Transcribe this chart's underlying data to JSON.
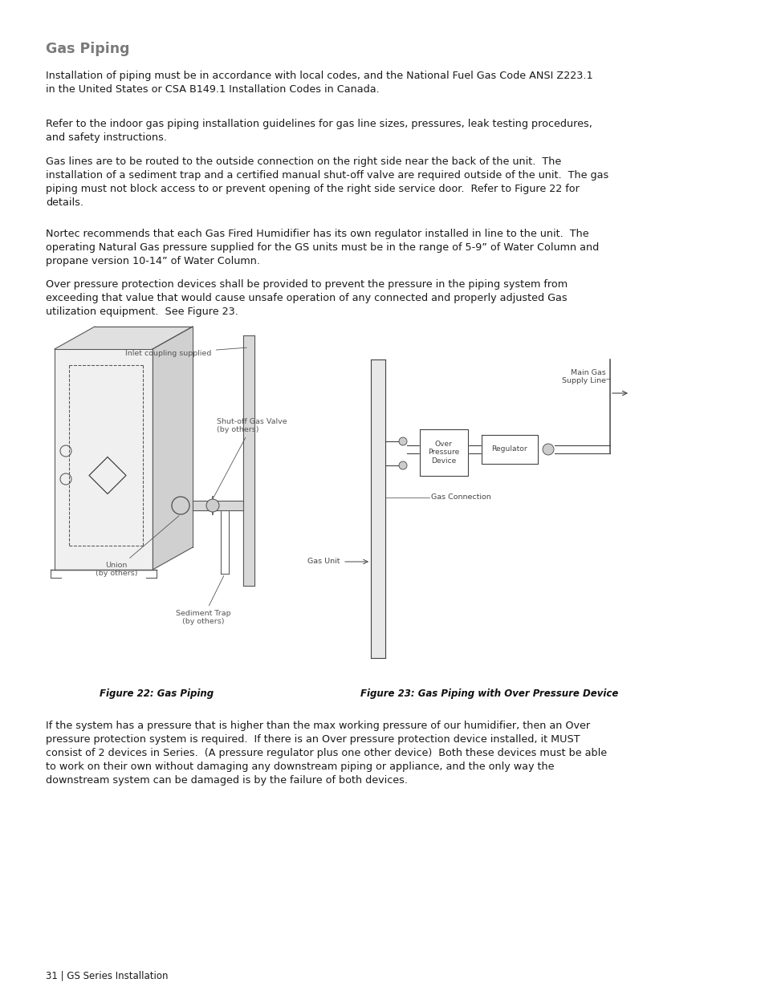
{
  "title": "Gas Piping",
  "title_color": "#7a7a7a",
  "body_color": "#1a1a1a",
  "bg_color": "#ffffff",
  "para1": "Installation of piping must be in accordance with local codes, and the National Fuel Gas Code ANSI Z223.1\nin the United States or CSA B149.1 Installation Codes in Canada.",
  "para2": "Refer to the indoor gas piping installation guidelines for gas line sizes, pressures, leak testing procedures,\nand safety instructions.",
  "para3": "Gas lines are to be routed to the outside connection on the right side near the back of the unit.  The\ninstallation of a sediment trap and a certified manual shut-off valve are required outside of the unit.  The gas\npiping must not block access to or prevent opening of the right side service door.  Refer to Figure 22 for\ndetails.",
  "para4": "Nortec recommends that each Gas Fired Humidifier has its own regulator installed in line to the unit.  The\noperating Natural Gas pressure supplied for the GS units must be in the range of 5-9” of Water Column and\npropane version 10-14” of Water Column.",
  "para5": "Over pressure protection devices shall be provided to prevent the pressure in the piping system from\nexceeding that value that would cause unsafe operation of any connected and properly adjusted Gas\nutilization equipment.  See Figure 23.",
  "fig22_caption": "Figure 22: Gas Piping",
  "fig23_caption": "Figure 23: Gas Piping with Over Pressure Device",
  "para6": "If the system has a pressure that is higher than the max working pressure of our humidifier, then an Over\npressure protection system is required.  If there is an Over pressure protection device installed, it MUST\nconsist of 2 devices in Series.  (A pressure regulator plus one other device)  Both these devices must be able\nto work on their own without damaging any downstream piping or appliance, and the only way the\ndownstream system can be damaged is by the failure of both devices.",
  "footer": "31 | GS Series Installation",
  "text_size": 9.2,
  "title_size": 12.5,
  "caption_size": 8.5,
  "footer_size": 8.5,
  "label_size": 6.8
}
